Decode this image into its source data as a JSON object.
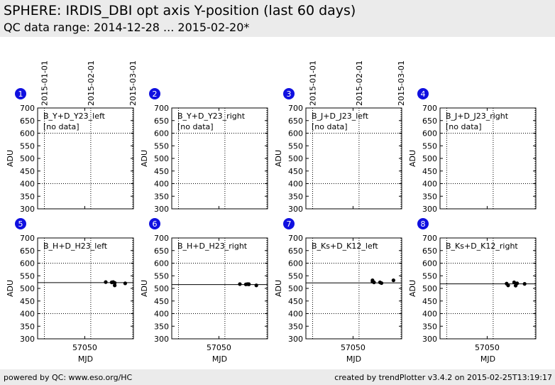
{
  "header": {
    "title": "SPHERE: IRDIS_DBI opt axis Y-position (last 60 days)",
    "subtitle": "QC data range: 2014-12-28 ... 2015-02-20*"
  },
  "footer": {
    "left": "powered by QC: www.eso.org/HC",
    "right": "created by trendPlotter v3.4.2 on 2015-02-25T13:19:17"
  },
  "colors": {
    "background": "#ffffff",
    "band": "#ebebeb",
    "badge": "#1010e0",
    "data": "#000000"
  },
  "chart_data": {
    "type": "scatter",
    "xlabel": "MJD",
    "ylabel": "ADU",
    "xlim": [
      57018.5,
      57082.5
    ],
    "ylim": [
      300,
      700
    ],
    "yticks": [
      300,
      350,
      400,
      450,
      500,
      550,
      600,
      650,
      700
    ],
    "xtick_bottom": [
      {
        "value": 57050,
        "label": "57050"
      }
    ],
    "date_lines": [
      {
        "value": 57023,
        "label": "2015-01-01"
      },
      {
        "value": 57054,
        "label": "2015-02-01"
      },
      {
        "value": 57082,
        "label": "2015-03-01"
      }
    ],
    "hlines": [
      400,
      600
    ],
    "panels": [
      {
        "num": "1",
        "name": "B_Y+D_Y23_left",
        "note": "[no data]",
        "ref": null,
        "points": []
      },
      {
        "num": "2",
        "name": "B_Y+D_Y23_right",
        "note": "[no data]",
        "ref": null,
        "points": []
      },
      {
        "num": "3",
        "name": "B_J+D_J23_left",
        "note": "[no data]",
        "ref": null,
        "points": []
      },
      {
        "num": "4",
        "name": "B_J+D_J23_right",
        "note": "[no data]",
        "ref": null,
        "points": []
      },
      {
        "num": "5",
        "name": "B_H+D_H23_left",
        "note": "",
        "ref": 523,
        "points": [
          [
            57064,
            525
          ],
          [
            57068,
            524
          ],
          [
            57069,
            525
          ],
          [
            57070,
            522
          ],
          [
            57070,
            512
          ],
          [
            57077,
            520
          ]
        ]
      },
      {
        "num": "6",
        "name": "B_H+D_H23_right",
        "note": "",
        "ref": 515,
        "points": [
          [
            57064,
            517
          ],
          [
            57068,
            516
          ],
          [
            57069,
            517
          ],
          [
            57070,
            517
          ],
          [
            57070,
            516
          ],
          [
            57075,
            512
          ]
        ]
      },
      {
        "num": "7",
        "name": "B_Ks+D_K12_left",
        "note": "",
        "ref": 522,
        "points": [
          [
            57063,
            532
          ],
          [
            57063,
            527
          ],
          [
            57064,
            524
          ],
          [
            57068,
            524
          ],
          [
            57069,
            521
          ],
          [
            57077,
            532
          ]
        ]
      },
      {
        "num": "8",
        "name": "B_Ks+D_K12_right",
        "note": "",
        "ref": 518,
        "points": [
          [
            57063,
            519
          ],
          [
            57064,
            512
          ],
          [
            57068,
            524
          ],
          [
            57069,
            511
          ],
          [
            57070,
            520
          ],
          [
            57075,
            518
          ]
        ]
      }
    ]
  }
}
